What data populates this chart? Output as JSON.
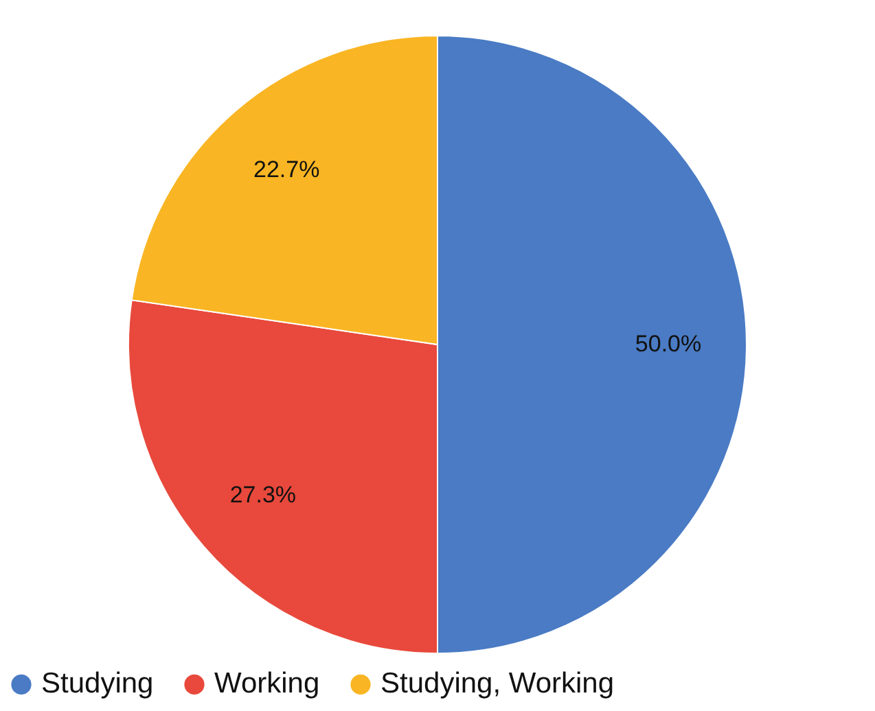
{
  "chart_data": {
    "type": "pie",
    "categories": [
      "Studying",
      "Working",
      "Studying, Working"
    ],
    "values": [
      50.0,
      27.3,
      22.7
    ],
    "colors": [
      "#4a7bc4",
      "#e8493c",
      "#f9b523"
    ],
    "value_labels": [
      "50.0%",
      "27.3%",
      "22.7%"
    ],
    "legend": "bottom"
  }
}
